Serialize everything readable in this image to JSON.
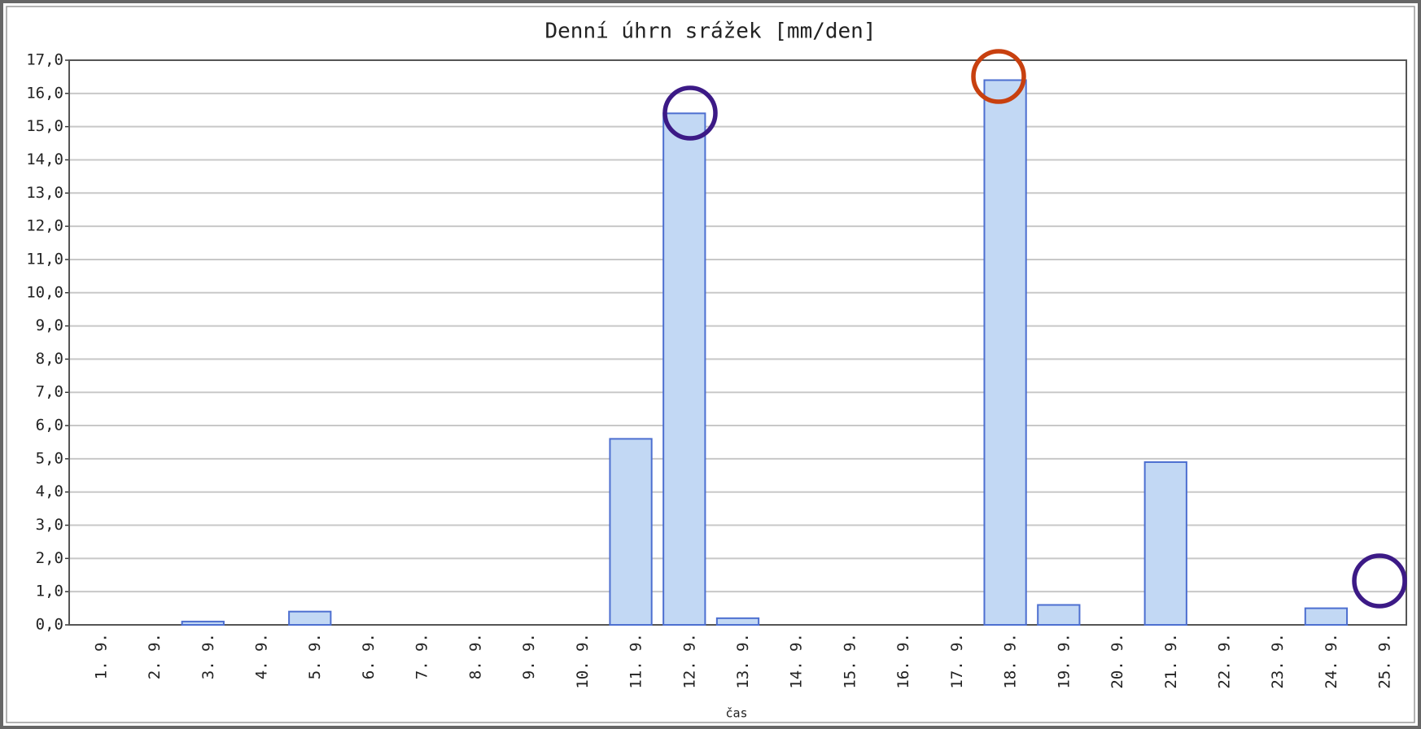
{
  "chart_data": {
    "type": "bar",
    "title": "Denní úhrn srážek [mm/den]",
    "x_label": "čas",
    "categories": [
      "1. 9.",
      "2. 9.",
      "3. 9.",
      "4. 9.",
      "5. 9.",
      "6. 9.",
      "7. 9.",
      "8. 9.",
      "9. 9.",
      "10. 9.",
      "11. 9.",
      "12. 9.",
      "13. 9.",
      "14. 9.",
      "15. 9.",
      "16. 9.",
      "17. 9.",
      "18. 9.",
      "19. 9.",
      "20. 9.",
      "21. 9.",
      "22. 9.",
      "23. 9.",
      "24. 9.",
      "25. 9."
    ],
    "values": [
      0,
      0,
      0.1,
      0,
      0.4,
      0,
      0,
      0,
      0,
      0,
      5.6,
      15.4,
      0.2,
      0,
      0,
      0,
      0,
      16.4,
      0.6,
      0,
      4.9,
      0,
      0,
      0.5,
      0
    ],
    "color": "#c2d8f4",
    "edge_color": "#4d6fd0",
    "ylim": [
      0,
      17
    ],
    "yticks": [
      {
        "value": 0,
        "label": "0,0"
      },
      {
        "value": 1,
        "label": "1,0"
      },
      {
        "value": 2,
        "label": "2,0"
      },
      {
        "value": 3,
        "label": "3,0"
      },
      {
        "value": 4,
        "label": "4,0"
      },
      {
        "value": 5,
        "label": "5,0"
      },
      {
        "value": 6,
        "label": "6,0"
      },
      {
        "value": 7,
        "label": "7,0"
      },
      {
        "value": 8,
        "label": "8,0"
      },
      {
        "value": 9,
        "label": "9,0"
      },
      {
        "value": 10,
        "label": "10,0"
      },
      {
        "value": 11,
        "label": "11,0"
      },
      {
        "value": 12,
        "label": "12,0"
      },
      {
        "value": 13,
        "label": "13,0"
      },
      {
        "value": 14,
        "label": "14,0"
      },
      {
        "value": 15,
        "label": "15,0"
      },
      {
        "value": 16,
        "label": "16,0"
      },
      {
        "value": 17,
        "label": "17,0"
      }
    ],
    "grid": true
  }
}
